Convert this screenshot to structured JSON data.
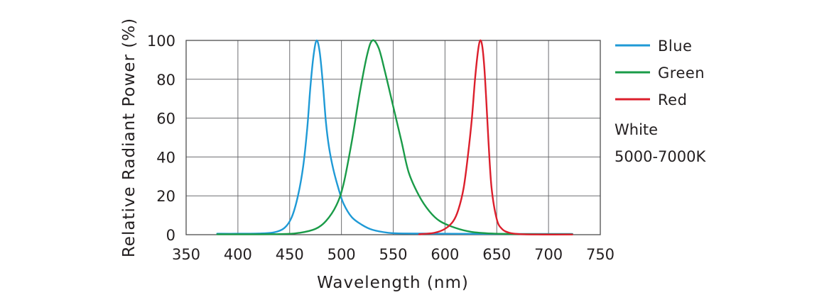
{
  "chart_data": {
    "type": "line",
    "xlabel": "Wavelength (nm)",
    "ylabel": "Relative Radiant Power (%)",
    "xlim": [
      350,
      750
    ],
    "ylim": [
      0,
      100
    ],
    "xticks": [
      350,
      400,
      450,
      500,
      550,
      600,
      650,
      700,
      750
    ],
    "yticks": [
      0,
      20,
      40,
      60,
      80,
      100
    ],
    "grid": true,
    "legend_position": "right",
    "series": [
      {
        "name": "Blue",
        "color": "#1f9ad6",
        "x": [
          380,
          400,
          420,
          435,
          445,
          452,
          458,
          463,
          467,
          470,
          473,
          476,
          479,
          482,
          485,
          488,
          492,
          497,
          502,
          510,
          520,
          530,
          545,
          560,
          600,
          650,
          700,
          723
        ],
        "y": [
          0.5,
          0.5,
          0.6,
          1.2,
          3.5,
          9,
          20,
          35,
          55,
          76,
          92,
          100,
          94,
          78,
          58,
          45,
          34,
          24,
          16,
          9,
          5,
          2.5,
          1,
          0.6,
          0.5,
          0.4,
          0.4,
          0.4
        ]
      },
      {
        "name": "Green",
        "color": "#1a9b48",
        "x": [
          380,
          440,
          460,
          475,
          485,
          495,
          502,
          510,
          518,
          525,
          530,
          536,
          542,
          550,
          558,
          565,
          575,
          585,
          595,
          610,
          625,
          645,
          670,
          700,
          723
        ],
        "y": [
          0.2,
          0.3,
          1,
          3,
          7,
          15,
          26,
          48,
          74,
          93,
          100,
          96,
          84,
          66,
          48,
          32,
          20,
          12,
          7,
          3.5,
          1.5,
          0.6,
          0.3,
          0.2,
          0.2
        ]
      },
      {
        "name": "Red",
        "color": "#dc1f2c",
        "x": [
          575,
          590,
          600,
          608,
          613,
          618,
          622,
          626,
          629,
          632,
          634,
          636,
          638,
          640,
          642,
          645,
          650,
          655,
          662,
          672,
          690,
          723
        ],
        "y": [
          0.2,
          1,
          3,
          7,
          13,
          24,
          40,
          60,
          80,
          95,
          100,
          97,
          86,
          68,
          48,
          24,
          8,
          3,
          1,
          0.3,
          0.1,
          0.1
        ]
      }
    ],
    "notes": [
      "White",
      "5000-7000K"
    ]
  }
}
